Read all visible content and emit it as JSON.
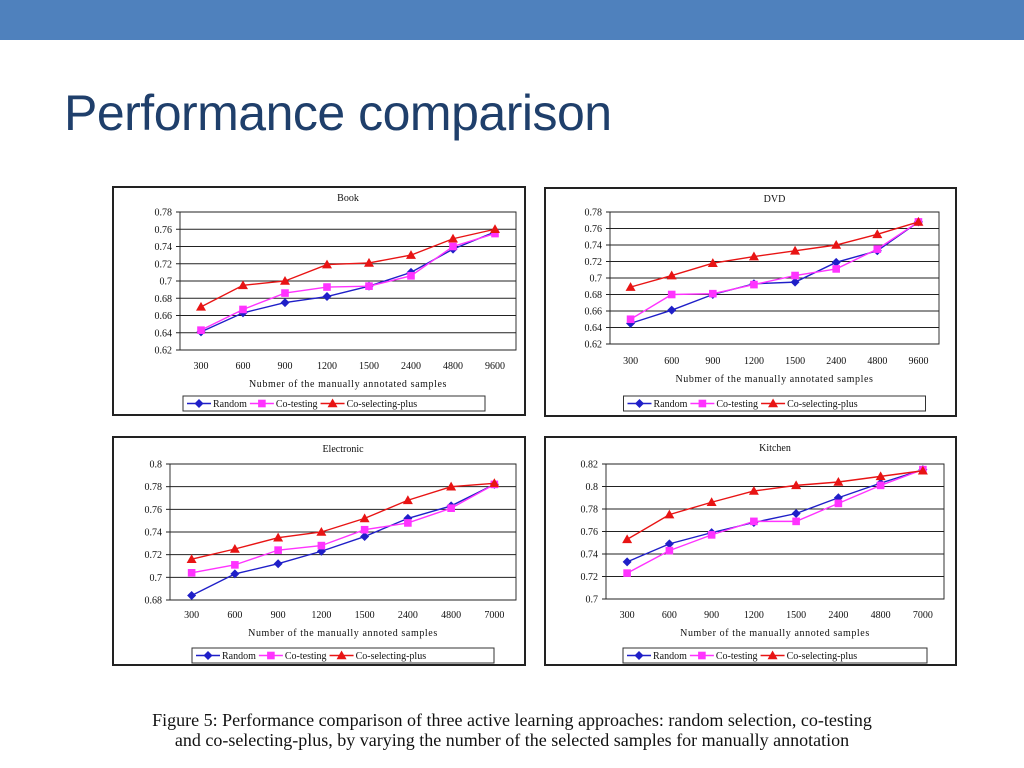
{
  "slide": {
    "title": "Performance comparison",
    "caption_line1": "Figure 5:  Performance comparison of three active learning approaches:  random selection, co-testing",
    "caption_line2": "and co-selecting-plus, by varying the number of the selected samples for manually annotation"
  },
  "colors": {
    "header_bar": "#4f81bd",
    "title": "#1f3f6b",
    "Random": "#1f1fc8",
    "Co-testing": "#ff33ff",
    "Co-selecting-plus": "#e81414"
  },
  "chart_data": [
    {
      "type": "line",
      "title": "Book",
      "xlabel": "Nubmer of the manually annotated samples",
      "ylabel": "",
      "categories": [
        "300",
        "600",
        "900",
        "1200",
        "1500",
        "2400",
        "4800",
        "9600"
      ],
      "ylim": [
        0.62,
        0.78
      ],
      "yticks": [
        "0.78",
        "0.76",
        "0.74",
        "0.72",
        "0.7",
        "0.68",
        "0.66",
        "0.64",
        "0.62"
      ],
      "grid": true,
      "legend": "bottom",
      "series": [
        {
          "name": "Random",
          "marker": "diamond",
          "values": [
            0.641,
            0.663,
            0.675,
            0.682,
            0.694,
            0.71,
            0.737,
            0.757
          ]
        },
        {
          "name": "Co-testing",
          "marker": "square",
          "values": [
            0.643,
            0.667,
            0.686,
            0.693,
            0.694,
            0.706,
            0.74,
            0.755
          ]
        },
        {
          "name": "Co-selecting-plus",
          "marker": "triangle",
          "values": [
            0.67,
            0.695,
            0.7,
            0.719,
            0.721,
            0.73,
            0.749,
            0.76
          ]
        }
      ]
    },
    {
      "type": "line",
      "title": "DVD",
      "xlabel": "Nubmer of the manually annotated samples",
      "ylabel": "",
      "categories": [
        "300",
        "600",
        "900",
        "1200",
        "1500",
        "2400",
        "4800",
        "9600"
      ],
      "ylim": [
        0.62,
        0.78
      ],
      "yticks": [
        "0.78",
        "0.76",
        "0.74",
        "0.72",
        "0.7",
        "0.68",
        "0.66",
        "0.64",
        "0.62"
      ],
      "grid": true,
      "legend": "bottom",
      "series": [
        {
          "name": "Random",
          "marker": "diamond",
          "values": [
            0.645,
            0.661,
            0.68,
            0.693,
            0.695,
            0.719,
            0.733,
            0.768
          ]
        },
        {
          "name": "Co-testing",
          "marker": "square",
          "values": [
            0.65,
            0.68,
            0.681,
            0.692,
            0.703,
            0.711,
            0.735,
            0.768
          ]
        },
        {
          "name": "Co-selecting-plus",
          "marker": "triangle",
          "values": [
            0.689,
            0.703,
            0.718,
            0.726,
            0.733,
            0.74,
            0.753,
            0.768
          ]
        }
      ]
    },
    {
      "type": "line",
      "title": "Electronic",
      "xlabel": "Number of the manually annoted samples",
      "ylabel": "",
      "categories": [
        "300",
        "600",
        "900",
        "1200",
        "1500",
        "2400",
        "4800",
        "7000"
      ],
      "ylim": [
        0.68,
        0.8
      ],
      "yticks": [
        "0.8",
        "0.78",
        "0.76",
        "0.74",
        "0.72",
        "0.7",
        "0.68"
      ],
      "grid": true,
      "legend": "bottom",
      "series": [
        {
          "name": "Random",
          "marker": "diamond",
          "values": [
            0.684,
            0.703,
            0.712,
            0.723,
            0.736,
            0.752,
            0.763,
            0.782
          ]
        },
        {
          "name": "Co-testing",
          "marker": "square",
          "values": [
            0.704,
            0.711,
            0.724,
            0.728,
            0.742,
            0.748,
            0.761,
            0.782
          ]
        },
        {
          "name": "Co-selecting-plus",
          "marker": "triangle",
          "values": [
            0.716,
            0.725,
            0.735,
            0.74,
            0.752,
            0.768,
            0.78,
            0.783
          ]
        }
      ]
    },
    {
      "type": "line",
      "title": "Kitchen",
      "xlabel": "Number of the manually annoted samples",
      "ylabel": "",
      "categories": [
        "300",
        "600",
        "900",
        "1200",
        "1500",
        "2400",
        "4800",
        "7000"
      ],
      "ylim": [
        0.7,
        0.82
      ],
      "yticks": [
        "0.82",
        "0.8",
        "0.78",
        "0.76",
        "0.74",
        "0.72",
        "0.7"
      ],
      "grid": true,
      "legend": "bottom",
      "series": [
        {
          "name": "Random",
          "marker": "diamond",
          "values": [
            0.733,
            0.749,
            0.759,
            0.768,
            0.776,
            0.79,
            0.803,
            0.815
          ]
        },
        {
          "name": "Co-testing",
          "marker": "square",
          "values": [
            0.723,
            0.743,
            0.757,
            0.769,
            0.769,
            0.785,
            0.801,
            0.815
          ]
        },
        {
          "name": "Co-selecting-plus",
          "marker": "triangle",
          "values": [
            0.753,
            0.775,
            0.786,
            0.796,
            0.801,
            0.804,
            0.809,
            0.814
          ]
        }
      ]
    }
  ],
  "legend_labels": [
    "Random",
    "Co-testing",
    "Co-selecting-plus"
  ]
}
